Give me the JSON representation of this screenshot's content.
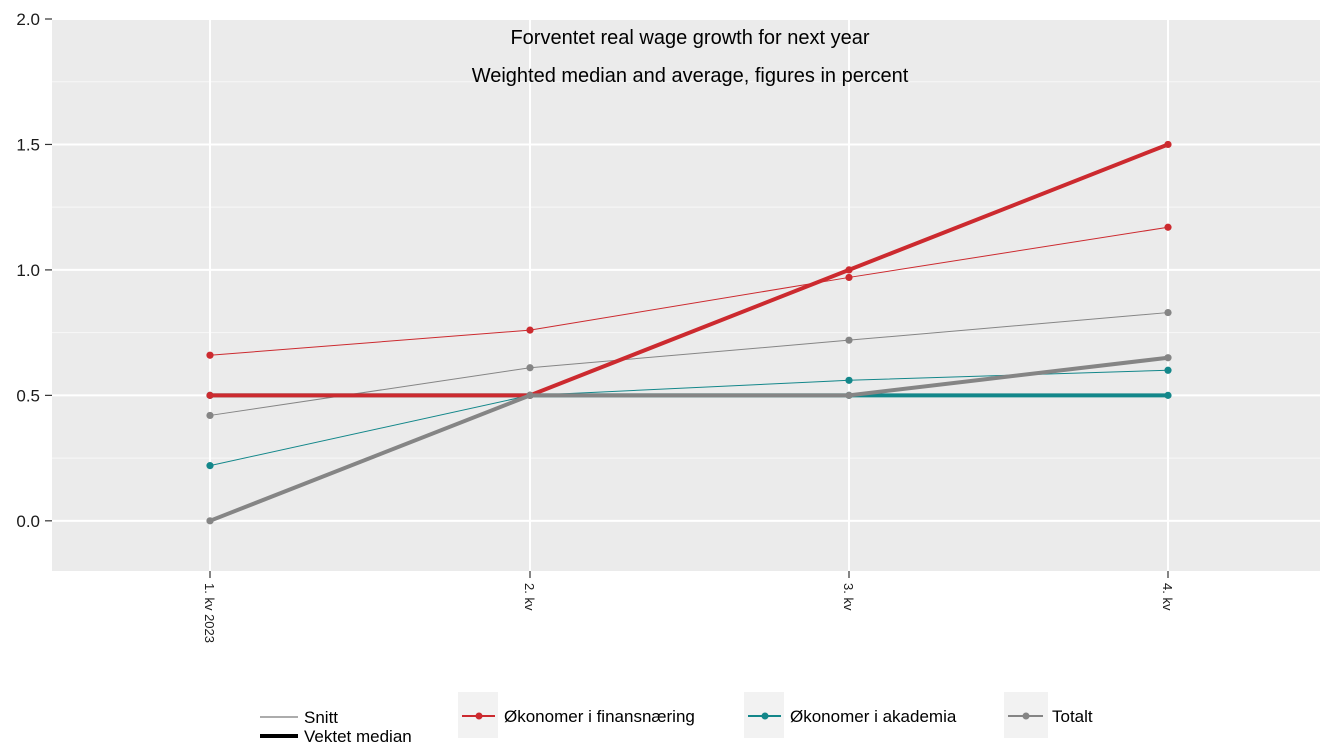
{
  "chart_data": {
    "type": "line",
    "title": "Forventet real wage growth for next year",
    "subtitle": "Weighted median and average, figures in percent",
    "xlabel": "",
    "ylabel": "",
    "categories": [
      "1. kv 2023",
      "2. kv",
      "3. kv",
      "4. kv"
    ],
    "ylim": [
      -0.2,
      2.0
    ],
    "yticks": [
      "0.0",
      "0.5",
      "1.0",
      "1.5",
      "2.0"
    ],
    "ytick_values": [
      0,
      0.5,
      1.0,
      1.5,
      2.0
    ],
    "grid": true,
    "legend_position": "bottom",
    "legend_linetype": [
      {
        "name": "Snitt",
        "style": "thin"
      },
      {
        "name": "Vektet median",
        "style": "thick"
      }
    ],
    "legend_groups": [
      {
        "name": "Økonomer i finansnæring",
        "color": "#cc2a2f"
      },
      {
        "name": "Økonomer i akademia",
        "color": "#13878a"
      },
      {
        "name": "Totalt",
        "color": "#858585"
      }
    ],
    "series": [
      {
        "group": "Økonomer i finansnæring",
        "stat": "Snitt",
        "color": "#cc2a2f",
        "values": [
          0.66,
          0.76,
          0.97,
          1.17
        ]
      },
      {
        "group": "Totalt",
        "stat": "Snitt",
        "color": "#858585",
        "values": [
          0.42,
          0.61,
          0.72,
          0.83
        ]
      },
      {
        "group": "Økonomer i akademia",
        "stat": "Snitt",
        "color": "#13878a",
        "values": [
          0.22,
          0.5,
          0.56,
          0.6
        ]
      },
      {
        "group": "Økonomer i akademia",
        "stat": "Vektet median",
        "color": "#13878a",
        "values": [
          0.5,
          0.5,
          0.5,
          0.5
        ]
      },
      {
        "group": "Økonomer i finansnæring",
        "stat": "Vektet median",
        "color": "#cc2a2f",
        "values": [
          0.5,
          0.5,
          1.0,
          1.5
        ]
      },
      {
        "group": "Totalt",
        "stat": "Vektet median",
        "color": "#858585",
        "values": [
          0.0,
          0.5,
          0.5,
          0.65
        ]
      }
    ]
  }
}
